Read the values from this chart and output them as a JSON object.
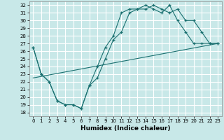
{
  "xlabel": "Humidex (Indice chaleur)",
  "bg_color": "#c8e8e8",
  "grid_color": "#ffffff",
  "line_color": "#1a7070",
  "xlim": [
    -0.5,
    23.5
  ],
  "ylim": [
    17.5,
    32.5
  ],
  "xticks": [
    0,
    1,
    2,
    3,
    4,
    5,
    6,
    7,
    8,
    9,
    10,
    11,
    12,
    13,
    14,
    15,
    16,
    17,
    18,
    19,
    20,
    21,
    22,
    23
  ],
  "yticks": [
    18,
    19,
    20,
    21,
    22,
    23,
    24,
    25,
    26,
    27,
    28,
    29,
    30,
    31,
    32
  ],
  "curve1_x": [
    0,
    1,
    2,
    3,
    4,
    5,
    6,
    7,
    8,
    9,
    10,
    11,
    12,
    13,
    14,
    15,
    16,
    17,
    18,
    19,
    20,
    21,
    22,
    23
  ],
  "curve1_y": [
    26.5,
    23.0,
    22.0,
    19.5,
    19.0,
    19.0,
    18.5,
    21.5,
    24.0,
    26.5,
    28.0,
    31.0,
    31.5,
    31.5,
    32.0,
    31.5,
    31.0,
    32.0,
    30.0,
    28.5,
    27.0,
    27.0,
    27.0,
    27.0
  ],
  "curve2_x": [
    0,
    1,
    2,
    3,
    4,
    5,
    6,
    7,
    8,
    9,
    10,
    11,
    12,
    13,
    14,
    15,
    16,
    17,
    18,
    19,
    20,
    21,
    22,
    23
  ],
  "curve2_y": [
    26.5,
    23.0,
    22.0,
    19.5,
    19.0,
    19.0,
    18.5,
    21.5,
    22.5,
    25.0,
    27.5,
    28.5,
    31.0,
    31.5,
    31.5,
    32.0,
    31.5,
    31.0,
    31.5,
    30.0,
    30.0,
    28.5,
    27.0,
    27.0
  ],
  "curve3_x": [
    0,
    23
  ],
  "curve3_y": [
    22.5,
    27.0
  ],
  "xlabel_fontsize": 6.5,
  "tick_fontsize": 5
}
